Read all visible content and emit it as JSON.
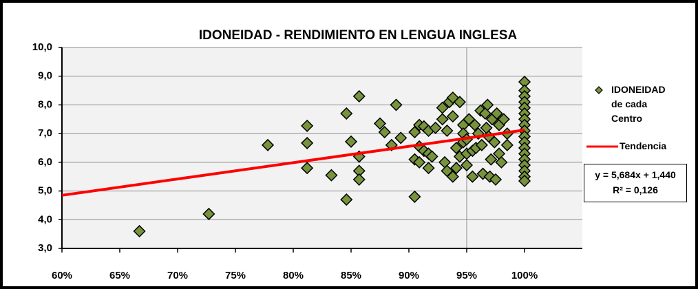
{
  "chart_data": {
    "type": "scatter",
    "title": "IDONEIDAD - RENDIMIENTO EN LENGUA INGLESA",
    "xlim": [
      60,
      105
    ],
    "ylim": [
      3,
      10
    ],
    "xticks": [
      {
        "value": 60,
        "label": "60%"
      },
      {
        "value": 65,
        "label": "65%"
      },
      {
        "value": 70,
        "label": "70%"
      },
      {
        "value": 75,
        "label": "75%"
      },
      {
        "value": 80,
        "label": "80%"
      },
      {
        "value": 85,
        "label": "85%"
      },
      {
        "value": 90,
        "label": "90%"
      },
      {
        "value": 95,
        "label": "95%"
      },
      {
        "value": 100,
        "label": "100%"
      }
    ],
    "yticks": [
      {
        "value": 3,
        "label": "3,0"
      },
      {
        "value": 4,
        "label": "4,0"
      },
      {
        "value": 5,
        "label": "5,0"
      },
      {
        "value": 6,
        "label": "6,0"
      },
      {
        "value": 7,
        "label": "7,0"
      },
      {
        "value": 8,
        "label": "8,0"
      },
      {
        "value": 9,
        "label": "9,0"
      },
      {
        "value": 10,
        "label": "10,0"
      }
    ],
    "grid": true,
    "vline": 95,
    "annotations": [
      "y = 5,684x + 1,440",
      "R² = 0,126"
    ],
    "series": [
      {
        "name": "IDONEIDAD de cada Centro",
        "color": "#77933c",
        "x": [
          66.7,
          72.7,
          77.8,
          81.2,
          81.2,
          81.2,
          83.3,
          84.6,
          84.6,
          85,
          85.7,
          85.7,
          85.7,
          85.7,
          87.5,
          87.9,
          88.5,
          88.9,
          89.3,
          90.5,
          90.5,
          90.5,
          90.9,
          90.9,
          90.9,
          91.3,
          91.3,
          91.7,
          91.7,
          91.7,
          92,
          92.3,
          92.9,
          92.9,
          93.1,
          93.3,
          93.3,
          93.5,
          93.8,
          93.8,
          93.8,
          94.1,
          94.1,
          94.4,
          94.4,
          94.7,
          94.7,
          94.7,
          95,
          95,
          95,
          95.2,
          95.5,
          95.5,
          95.7,
          95.8,
          96,
          96.2,
          96.3,
          96.4,
          96.6,
          96.7,
          96.8,
          96.9,
          97,
          97.1,
          97.2,
          97.4,
          97.5,
          97.6,
          97.8,
          97.8,
          98,
          98.2,
          98.5,
          98.5,
          100,
          100,
          100,
          100,
          100,
          100,
          100,
          100,
          100,
          100,
          100,
          100,
          100,
          100,
          100,
          100,
          100,
          100
        ],
        "values": [
          3.6,
          4.2,
          6.6,
          7.27,
          6.67,
          5.8,
          5.55,
          7.7,
          4.7,
          6.72,
          8.3,
          6.2,
          5.7,
          5.4,
          7.35,
          7.05,
          6.6,
          8.0,
          6.85,
          4.8,
          7.05,
          6.1,
          7.3,
          6.55,
          6.0,
          7.25,
          6.4,
          6.3,
          5.8,
          7.1,
          6.2,
          7.2,
          7.9,
          7.5,
          6.0,
          5.7,
          7.1,
          8.1,
          8.25,
          5.5,
          7.6,
          6.5,
          5.8,
          8.1,
          6.2,
          7.3,
          7.0,
          6.7,
          6.8,
          6.3,
          5.9,
          7.5,
          6.4,
          5.5,
          7.3,
          6.5,
          7.0,
          7.8,
          6.6,
          5.6,
          7.7,
          7.2,
          8.0,
          6.9,
          5.5,
          6.1,
          7.5,
          6.7,
          5.4,
          7.7,
          6.3,
          7.3,
          6.0,
          7.5,
          6.6,
          7.0,
          8.8,
          8.5,
          8.3,
          8.1,
          7.9,
          7.7,
          7.5,
          7.3,
          7.1,
          6.9,
          6.7,
          6.5,
          6.3,
          6.1,
          5.9,
          5.7,
          5.5,
          5.35
        ]
      },
      {
        "name": "Tendencia",
        "type": "line",
        "color": "#ff0000",
        "x": [
          60,
          100
        ],
        "values": [
          4.85,
          7.124
        ]
      }
    ]
  }
}
